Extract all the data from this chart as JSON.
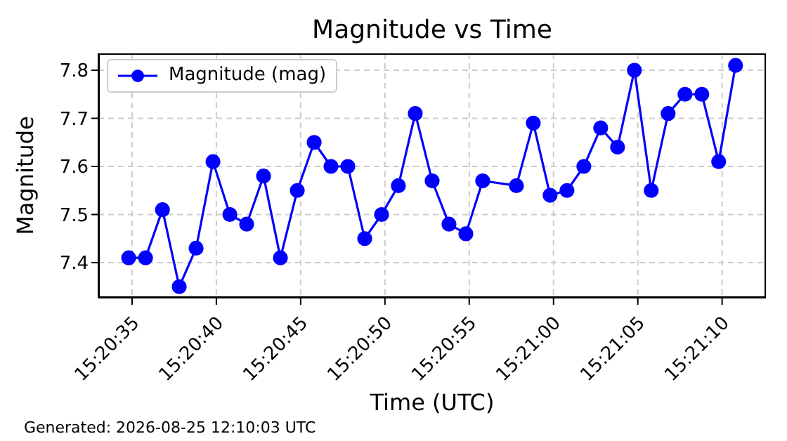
{
  "chart_data": {
    "type": "line",
    "title": "Magnitude vs Time",
    "xlabel": "Time (UTC)",
    "ylabel": "Magnitude",
    "annotations": [
      "Generated: 2026-08-25 12:10:03 UTC"
    ],
    "x": [
      15.343,
      15.343278,
      15.343556,
      15.343833,
      15.344111,
      15.344389,
      15.344667,
      15.344944,
      15.345222,
      15.3455,
      15.345778,
      15.346056,
      15.346333,
      15.346611,
      15.346889,
      15.347167,
      15.347444,
      15.347722,
      15.348,
      15.348278,
      15.348556,
      15.348833,
      15.349389,
      15.349667,
      15.349944,
      15.350222,
      15.3505,
      15.350778,
      15.351056,
      15.351333,
      15.351611,
      15.351889,
      15.352167,
      15.352444,
      15.352722,
      15.353
    ],
    "series": [
      {
        "name": "Magnitude (mag)",
        "color": "#0000ff",
        "values": [
          7.41,
          7.41,
          7.51,
          7.35,
          7.43,
          7.61,
          7.5,
          7.48,
          7.58,
          7.41,
          7.55,
          7.65,
          7.6,
          7.6,
          7.45,
          7.5,
          7.56,
          7.71,
          7.57,
          7.48,
          7.46,
          7.57,
          7.56,
          7.69,
          7.54,
          7.55,
          7.6,
          7.68,
          7.64,
          7.8,
          7.55,
          7.71,
          7.75,
          7.75,
          7.61,
          7.81
        ]
      }
    ],
    "xlim": [
      15.3425,
      15.3535
    ],
    "xticks": [
      {
        "value": 15.343056,
        "label": "15:20:35"
      },
      {
        "value": 15.344444,
        "label": "15:20:40"
      },
      {
        "value": 15.345833,
        "label": "15:20:45"
      },
      {
        "value": 15.347222,
        "label": "15:20:50"
      },
      {
        "value": 15.348611,
        "label": "15:20:55"
      },
      {
        "value": 15.35,
        "label": "15:21:00"
      },
      {
        "value": 15.351389,
        "label": "15:21:05"
      },
      {
        "value": 15.352778,
        "label": "15:21:10"
      }
    ],
    "ylim": [
      7.327,
      7.835
    ],
    "yticks": [
      7.4,
      7.5,
      7.6,
      7.7,
      7.8
    ],
    "grid": true,
    "legend": "top left",
    "marker": "circle",
    "line_style": "solid"
  }
}
